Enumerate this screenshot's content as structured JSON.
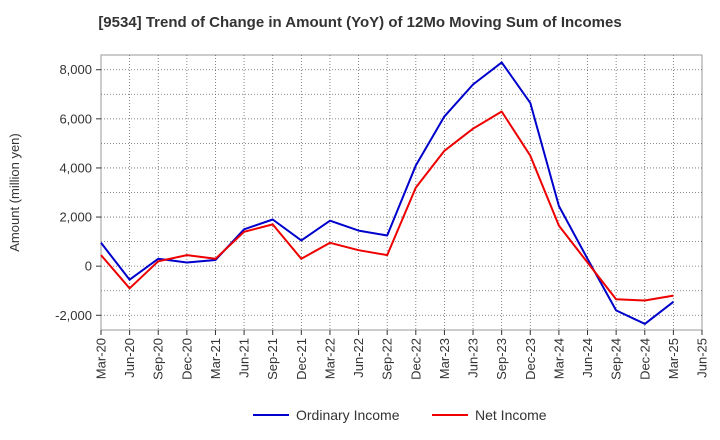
{
  "chart_data": {
    "type": "line",
    "title": "[9534]  Trend of Change in Amount (YoY) of 12Mo Moving Sum of Incomes",
    "ylabel": "Amount (million yen)",
    "xlabel": "",
    "x_ticks": [
      "Mar-20",
      "Jun-20",
      "Sep-20",
      "Dec-20",
      "Mar-21",
      "Jun-21",
      "Sep-21",
      "Dec-21",
      "Mar-22",
      "Jun-22",
      "Sep-22",
      "Dec-22",
      "Mar-23",
      "Jun-23",
      "Sep-23",
      "Dec-23",
      "Mar-24",
      "Jun-24",
      "Sep-24",
      "Dec-24",
      "Mar-25",
      "Jun-25"
    ],
    "y_ticks": [
      -2000,
      0,
      2000,
      4000,
      6000,
      8000
    ],
    "y_tick_labels": [
      "-2,000",
      "0",
      "2,000",
      "4,000",
      "6,000",
      "8,000"
    ],
    "ylim": [
      -2600,
      8600
    ],
    "grid": true,
    "legend_position": "bottom-center",
    "series": [
      {
        "name": "Ordinary Income",
        "color": "#0000cc",
        "x": [
          "Mar-20",
          "Jun-20",
          "Sep-20",
          "Dec-20",
          "Mar-21",
          "Jun-21",
          "Sep-21",
          "Dec-21",
          "Mar-22",
          "Jun-22",
          "Sep-22",
          "Dec-22",
          "Mar-23",
          "Jun-23",
          "Sep-23",
          "Dec-23",
          "Mar-24",
          "Jun-24",
          "Sep-24",
          "Dec-24",
          "Mar-25"
        ],
        "values": [
          950,
          -550,
          300,
          150,
          250,
          1500,
          1900,
          1050,
          1850,
          1450,
          1250,
          4100,
          6100,
          7400,
          8300,
          6650,
          2450,
          300,
          -1800,
          -2350,
          -1450
        ]
      },
      {
        "name": "Net Income",
        "color": "#ee0000",
        "x": [
          "Mar-20",
          "Jun-20",
          "Sep-20",
          "Dec-20",
          "Mar-21",
          "Jun-21",
          "Sep-21",
          "Dec-21",
          "Mar-22",
          "Jun-22",
          "Sep-22",
          "Dec-22",
          "Mar-23",
          "Jun-23",
          "Sep-23",
          "Dec-23",
          "Mar-24",
          "Jun-24",
          "Sep-24",
          "Dec-24",
          "Mar-25"
        ],
        "values": [
          450,
          -900,
          200,
          450,
          300,
          1400,
          1700,
          300,
          950,
          650,
          450,
          3200,
          4700,
          5600,
          6300,
          4500,
          1650,
          150,
          -1350,
          -1400,
          -1200
        ]
      }
    ]
  }
}
